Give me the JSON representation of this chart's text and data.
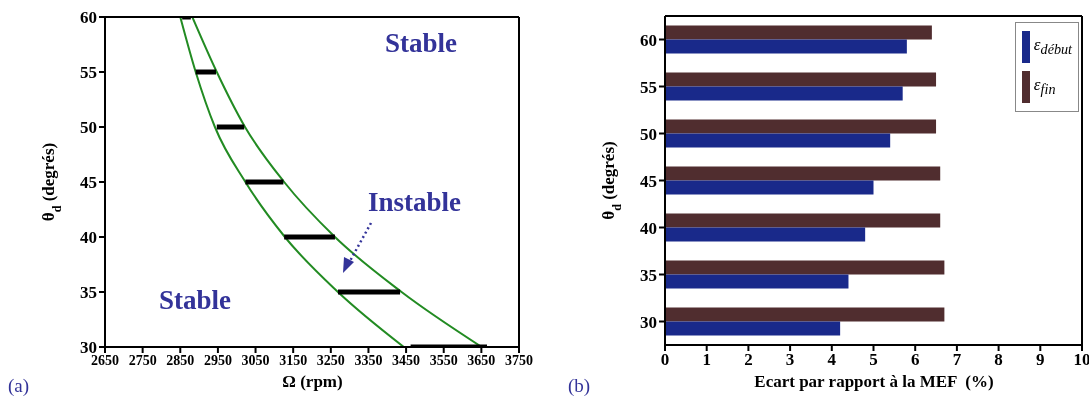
{
  "chart_data": [
    {
      "type": "line",
      "xlabel": "Ω (rpm)",
      "ylabel": "θ$_{d}$ (degrés)",
      "xlim": [
        2650,
        3750
      ],
      "xticks": [
        2650,
        2750,
        2850,
        2950,
        3050,
        3150,
        3250,
        3350,
        3450,
        3550,
        3650,
        3750
      ],
      "ylim": [
        30,
        60
      ],
      "yticks": [
        30,
        35,
        40,
        45,
        50,
        55,
        60
      ],
      "series": [
        {
          "color": "#228b22",
          "x": [
            2850,
            2891,
            2942,
            3023,
            3128,
            3269,
            3444
          ],
          "values": [
            60,
            55,
            50,
            45,
            40,
            35,
            30
          ]
        },
        {
          "color": "#228b22",
          "x": [
            2882,
            2947,
            3022,
            3126,
            3261,
            3438,
            3651
          ],
          "values": [
            60,
            55,
            50,
            45,
            40,
            35,
            30
          ]
        },
        {
          "color": "#000000",
          "x": [
            2855,
            2878
          ],
          "values": [
            60,
            60
          ]
        },
        {
          "color": "#000000",
          "x": [
            2891,
            2945
          ],
          "values": [
            55,
            55
          ]
        },
        {
          "color": "#000000",
          "x": [
            2947,
            3020
          ],
          "values": [
            50,
            50
          ]
        },
        {
          "color": "#000000",
          "x": [
            3023,
            3124
          ],
          "values": [
            45,
            45
          ]
        },
        {
          "color": "#000000",
          "x": [
            3126,
            3261
          ],
          "values": [
            40,
            40
          ]
        },
        {
          "color": "#000000",
          "x": [
            3269,
            3434
          ],
          "values": [
            35,
            35
          ]
        },
        {
          "color": "#000000",
          "x": [
            3462,
            3665
          ],
          "values": [
            30,
            30
          ]
        }
      ],
      "annotations": [
        "Stable",
        "Instable",
        "Stable",
        "(a)"
      ]
    },
    {
      "type": "bar",
      "orientation": "horizontal",
      "xlabel": "Ecart par rapport à la MEF  (%)",
      "ylabel": "θ$_{d}$ (degrés)",
      "categories": [
        "60",
        "55",
        "50",
        "45",
        "40",
        "35",
        "30"
      ],
      "xlim": [
        0,
        10
      ],
      "xticks": [
        0,
        1,
        2,
        3,
        4,
        5,
        6,
        7,
        8,
        9,
        10
      ],
      "legend": "top right",
      "series": [
        {
          "name": "ε$_{début}$",
          "color": "#19298a",
          "values": [
            5.8,
            5.7,
            5.4,
            5.0,
            4.8,
            4.4,
            4.2
          ]
        },
        {
          "name": "ε$_{fin}$",
          "color": "#502d2f",
          "values": [
            6.4,
            6.5,
            6.5,
            6.6,
            6.6,
            6.7,
            6.7
          ]
        }
      ],
      "annotations": [
        "(b)"
      ]
    }
  ]
}
